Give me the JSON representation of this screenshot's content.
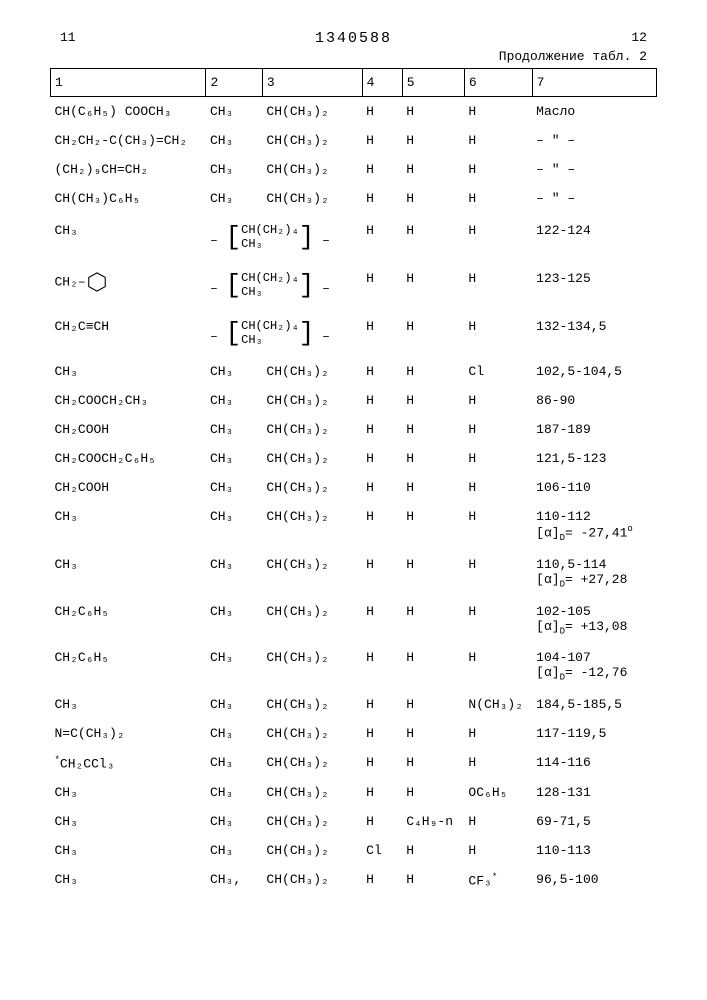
{
  "header": {
    "page_left": "11",
    "doc_number": "1340588",
    "page_right": "12",
    "continuation": "Продолжение табл. 2"
  },
  "columns": [
    "1",
    "2",
    "3",
    "4",
    "5",
    "6",
    "7"
  ],
  "rows": [
    {
      "c1": "CH(C₆H₅) COOCH₃",
      "c2": "CH₃",
      "c3": "CH(CH₃)₂",
      "c4": "H",
      "c5": "H",
      "c6": "H",
      "c7": "Масло"
    },
    {
      "c1": "CH₂CH₂-C(CH₃)=CH₂",
      "c2": "CH₃",
      "c3": "CH(CH₃)₂",
      "c4": "H",
      "c5": "H",
      "c6": "H",
      "c7": "– \" –"
    },
    {
      "c1": "(CH₂)₉CH=CH₂",
      "c2": "CH₃",
      "c3": "CH(CH₃)₂",
      "c4": "H",
      "c5": "H",
      "c6": "H",
      "c7": "– \" –"
    },
    {
      "c1": "CH(CH₃)C₆H₅",
      "c2": "CH₃",
      "c3": "CH(CH₃)₂",
      "c4": "H",
      "c5": "H",
      "c6": "H",
      "c7": "– \" –"
    },
    {
      "c1": "CH₃",
      "c23_bracket": true,
      "c4": "H",
      "c5": "H",
      "c6": "H",
      "c7": "122-124"
    },
    {
      "c1_benzyl": true,
      "c23_bracket": true,
      "c4": "H",
      "c5": "H",
      "c6": "H",
      "c7": "123-125"
    },
    {
      "c1": "CH₂C≡CH",
      "c23_bracket": true,
      "c4": "H",
      "c5": "H",
      "c6": "H",
      "c7": "132-134,5"
    },
    {
      "c1": "CH₃",
      "c2": "CH₃",
      "c3": "CH(CH₃)₂",
      "c4": "H",
      "c5": "H",
      "c6": "Cl",
      "c7": "102,5-104,5"
    },
    {
      "c1": "CH₂COOCH₂CH₃",
      "c2": "CH₃",
      "c3": "CH(CH₃)₂",
      "c4": "H",
      "c5": "H",
      "c6": "H",
      "c7": "86-90"
    },
    {
      "c1": "CH₂COOH",
      "c2": "CH₃",
      "c3": "CH(CH₃)₂",
      "c4": "H",
      "c5": "H",
      "c6": "H",
      "c7": "187-189"
    },
    {
      "c1": "CH₂COOCH₂C₆H₅",
      "c2": "CH₃",
      "c3": "CH(CH₃)₂",
      "c4": "H",
      "c5": "H",
      "c6": "H",
      "c7": "121,5-123"
    },
    {
      "c1": "CH₂COOH",
      "c2": "CH₃",
      "c3": "CH(CH₃)₂",
      "c4": "H",
      "c5": "H",
      "c6": "H",
      "c7": "106-110"
    },
    {
      "c1": "CH₃",
      "c2": "CH₃",
      "c3": "CH(CH₃)₂",
      "c4": "H",
      "c5": "H",
      "c6": "H",
      "c7": "110-112",
      "c7b": "[α]ᴅ= -27,41°"
    },
    {
      "c1": "CH₃",
      "c2": "CH₃",
      "c3": "CH(CH₃)₂",
      "c4": "H",
      "c5": "H",
      "c6": "H",
      "c7": "110,5-114",
      "c7b": "[α]ᴅ= +27,28"
    },
    {
      "c1": "CH₂C₆H₅",
      "c2": "CH₃",
      "c3": "CH(CH₃)₂",
      "c4": "H",
      "c5": "H",
      "c6": "H",
      "c7": "102-105",
      "c7b": "[α]ᴅ= +13,08"
    },
    {
      "c1": "CH₂C₆H₅",
      "c2": "CH₃",
      "c3": "CH(CH₃)₂",
      "c4": "H",
      "c5": "H",
      "c6": "H",
      "c7": "104-107",
      "c7b": "[α]ᴅ= -12,76"
    },
    {
      "c1": "CH₃",
      "c2": "CH₃",
      "c3": "CH(CH₃)₂",
      "c4": "H",
      "c5": "H",
      "c6": "N(CH₃)₂",
      "c7": "184,5-185,5"
    },
    {
      "c1": "N=C(CH₃)₂",
      "c2": "CH₃",
      "c3": "CH(CH₃)₂",
      "c4": "H",
      "c5": "H",
      "c6": "H",
      "c7": "117-119,5"
    },
    {
      "c1": "*CH₂CCl₃",
      "c2": "CH₃",
      "c3": "CH(CH₃)₂",
      "c4": "H",
      "c5": "H",
      "c6": "H",
      "c7": "114-116"
    },
    {
      "c1": "CH₃",
      "c2": "CH₃",
      "c3": "CH(CH₃)₂",
      "c4": "H",
      "c5": "H",
      "c6": "OC₆H₅",
      "c7": "128-131"
    },
    {
      "c1": "CH₃",
      "c2": "CH₃",
      "c3": "CH(CH₃)₂",
      "c4": "H",
      "c5": "C₄H₉-n",
      "c6": "H",
      "c7": "69-71,5"
    },
    {
      "c1": "CH₃",
      "c2": "CH₃",
      "c3": "CH(CH₃)₂",
      "c4": "Cl",
      "c5": "H",
      "c6": "H",
      "c7": "110-113"
    },
    {
      "c1": "CH₃",
      "c2": "CH₃,",
      "c3": "CH(CH₃)₂",
      "c4": "H",
      "c5": "H",
      "c6": "CF₃*",
      "c7": "96,5-100"
    }
  ],
  "bracket_formula": {
    "top": "CH(CH₂)₄",
    "bottom": "CH₃"
  },
  "styling": {
    "font_family": "Courier New",
    "font_size_pt": 10,
    "text_color": "#000000",
    "background": "#ffffff",
    "border_color": "#000000"
  }
}
